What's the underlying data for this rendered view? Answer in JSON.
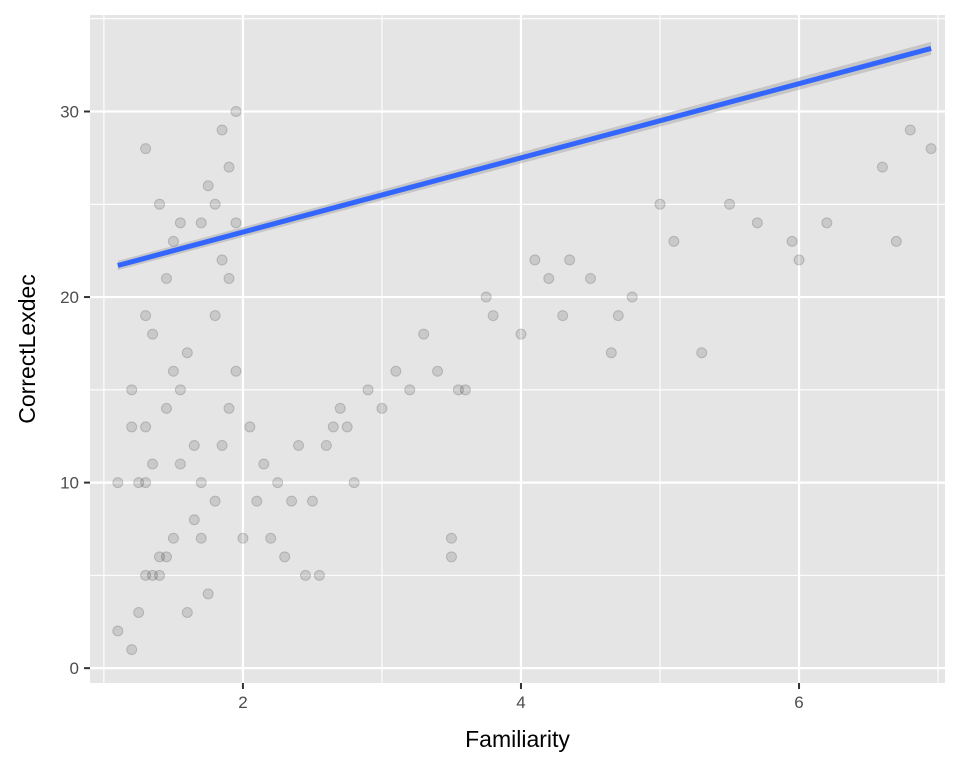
{
  "chart_data": {
    "type": "scatter",
    "title": "",
    "xlabel": "Familiarity",
    "ylabel": "CorrectLexdec",
    "xlim": [
      0.9,
      7.05
    ],
    "ylim": [
      -0.8,
      35.2
    ],
    "x_ticks": [
      2,
      4,
      6
    ],
    "y_ticks": [
      0,
      10,
      20,
      30
    ],
    "x_tick_labels": [
      "2",
      "4",
      "6"
    ],
    "y_tick_labels": [
      "0",
      "10",
      "20",
      "30"
    ],
    "grid": true,
    "legend": "none",
    "point_alpha": 0.12,
    "colors": {
      "panel": "#e5e5e5",
      "grid": "#ffffff",
      "points": "#000000",
      "smooth_line": "#3366ff",
      "ribbon": "#999999"
    },
    "smooth": {
      "method": "linear",
      "x": [
        1.1,
        6.95
      ],
      "y": [
        21.7,
        33.4
      ]
    },
    "points": [
      [
        1.1,
        2
      ],
      [
        1.2,
        1
      ],
      [
        1.25,
        3
      ],
      [
        1.3,
        5
      ],
      [
        1.35,
        5
      ],
      [
        1.4,
        5
      ],
      [
        1.1,
        10
      ],
      [
        1.2,
        13
      ],
      [
        1.25,
        10
      ],
      [
        1.3,
        10
      ],
      [
        1.35,
        11
      ],
      [
        1.2,
        15
      ],
      [
        1.3,
        13
      ],
      [
        1.4,
        6
      ],
      [
        1.45,
        6
      ],
      [
        1.5,
        7
      ],
      [
        1.3,
        19
      ],
      [
        1.35,
        18
      ],
      [
        1.3,
        28
      ],
      [
        1.4,
        25
      ],
      [
        1.45,
        21
      ],
      [
        1.5,
        23
      ],
      [
        1.55,
        24
      ],
      [
        1.6,
        3
      ],
      [
        1.45,
        14
      ],
      [
        1.5,
        16
      ],
      [
        1.55,
        15
      ],
      [
        1.6,
        17
      ],
      [
        1.65,
        12
      ],
      [
        1.7,
        10
      ],
      [
        1.75,
        4
      ],
      [
        1.8,
        9
      ],
      [
        1.85,
        12
      ],
      [
        1.9,
        14
      ],
      [
        1.95,
        16
      ],
      [
        1.7,
        24
      ],
      [
        1.75,
        26
      ],
      [
        1.8,
        25
      ],
      [
        1.85,
        29
      ],
      [
        1.9,
        27
      ],
      [
        1.95,
        30
      ],
      [
        1.55,
        11
      ],
      [
        1.65,
        8
      ],
      [
        1.7,
        7
      ],
      [
        1.8,
        19
      ],
      [
        1.85,
        22
      ],
      [
        1.9,
        21
      ],
      [
        1.95,
        24
      ],
      [
        2.0,
        7
      ],
      [
        2.05,
        13
      ],
      [
        2.1,
        9
      ],
      [
        2.15,
        11
      ],
      [
        2.2,
        7
      ],
      [
        2.25,
        10
      ],
      [
        2.3,
        6
      ],
      [
        2.35,
        9
      ],
      [
        2.4,
        12
      ],
      [
        2.45,
        5
      ],
      [
        2.5,
        9
      ],
      [
        2.55,
        5
      ],
      [
        2.6,
        12
      ],
      [
        2.65,
        13
      ],
      [
        2.7,
        14
      ],
      [
        2.75,
        13
      ],
      [
        2.8,
        10
      ],
      [
        2.9,
        15
      ],
      [
        3.0,
        14
      ],
      [
        3.1,
        16
      ],
      [
        3.2,
        15
      ],
      [
        3.3,
        18
      ],
      [
        3.4,
        16
      ],
      [
        3.5,
        6
      ],
      [
        3.5,
        7
      ],
      [
        3.55,
        15
      ],
      [
        3.6,
        15
      ],
      [
        3.75,
        20
      ],
      [
        3.8,
        19
      ],
      [
        4.0,
        18
      ],
      [
        4.1,
        22
      ],
      [
        4.2,
        21
      ],
      [
        4.3,
        19
      ],
      [
        4.35,
        22
      ],
      [
        4.5,
        21
      ],
      [
        4.65,
        17
      ],
      [
        4.7,
        19
      ],
      [
        4.8,
        20
      ],
      [
        5.3,
        17
      ],
      [
        5.1,
        23
      ],
      [
        5.0,
        25
      ],
      [
        5.5,
        25
      ],
      [
        5.7,
        24
      ],
      [
        5.95,
        23
      ],
      [
        6.0,
        22
      ],
      [
        6.2,
        24
      ],
      [
        6.7,
        23
      ],
      [
        6.95,
        28
      ],
      [
        6.8,
        29
      ],
      [
        6.6,
        27
      ]
    ]
  }
}
